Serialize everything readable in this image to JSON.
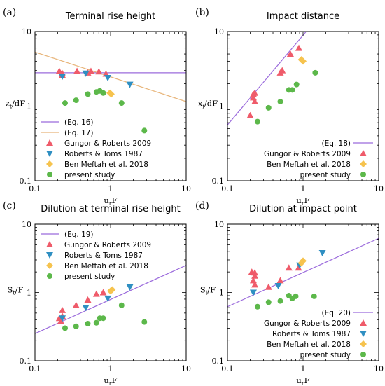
{
  "colors": {
    "eq_purple": "#9b6bdc",
    "eq_orange": "#e8b57a",
    "gungor": "#ef5b6a",
    "roberts": "#2f8fc2",
    "benmeftah": "#f6c34e",
    "present": "#5cb84a"
  },
  "chart_data": [
    {
      "panel": "(a)",
      "title": "Terminal rise height",
      "type": "scatter",
      "xlabel": "u_rF",
      "ylabel": "z_t/dF",
      "xscale": "log",
      "yscale": "log",
      "xlim": [
        0.1,
        10
      ],
      "ylim": [
        0.1,
        10
      ],
      "x_ticks": [
        "0.1",
        "1",
        "10"
      ],
      "y_ticks": [
        "0.1",
        "1",
        "10"
      ],
      "grid": false,
      "legend": {
        "position": "bottom-left"
      },
      "lines": [
        {
          "name": "(Eq. 16)",
          "color_key": "eq_purple",
          "points": [
            [
              0.1,
              2.8
            ],
            [
              10,
              2.8
            ]
          ]
        },
        {
          "name": "(Eq. 17)",
          "color_key": "eq_orange",
          "points": [
            [
              0.1,
              5.3
            ],
            [
              10,
              1.15
            ]
          ]
        }
      ],
      "series": [
        {
          "name": "Gungor & Roberts 2009",
          "marker": "triangle-up",
          "color_key": "gungor",
          "points": [
            [
              0.21,
              2.95
            ],
            [
              0.23,
              2.6
            ],
            [
              0.23,
              2.75
            ],
            [
              0.36,
              2.95
            ],
            [
              0.5,
              2.8
            ],
            [
              0.55,
              2.95
            ],
            [
              0.7,
              2.9
            ],
            [
              0.87,
              2.7
            ]
          ]
        },
        {
          "name": "Roberts & Toms 1987",
          "marker": "triangle-down",
          "color_key": "roberts",
          "points": [
            [
              0.23,
              2.5
            ],
            [
              0.47,
              2.75
            ],
            [
              0.92,
              2.4
            ],
            [
              1.8,
              1.95
            ]
          ]
        },
        {
          "name": "Ben Meftah et al. 2018",
          "marker": "diamond",
          "color_key": "benmeftah",
          "points": [
            [
              0.98,
              1.5
            ],
            [
              1.02,
              1.45
            ]
          ]
        },
        {
          "name": "present study",
          "marker": "circle",
          "color_key": "present",
          "points": [
            [
              0.25,
              1.1
            ],
            [
              0.35,
              1.2
            ],
            [
              0.5,
              1.45
            ],
            [
              0.65,
              1.55
            ],
            [
              0.72,
              1.6
            ],
            [
              0.8,
              1.5
            ],
            [
              1.4,
              1.1
            ],
            [
              2.8,
              0.47
            ]
          ]
        }
      ]
    },
    {
      "panel": "(b)",
      "title": "Impact distance",
      "type": "scatter",
      "xlabel": "u_rF",
      "ylabel": "x_i/dF",
      "xscale": "log",
      "yscale": "log",
      "xlim": [
        0.1,
        10
      ],
      "ylim": [
        0.1,
        10
      ],
      "x_ticks": [
        "0.1",
        "1",
        "10"
      ],
      "y_ticks": [
        "0.1",
        "1",
        "10"
      ],
      "grid": false,
      "legend": {
        "position": "bottom-right"
      },
      "lines": [
        {
          "name": "(Eq. 18)",
          "color_key": "eq_purple",
          "points": [
            [
              0.1,
              0.56
            ],
            [
              1.1,
              10
            ]
          ]
        }
      ],
      "series": [
        {
          "name": "Gungor & Roberts 2009",
          "marker": "triangle-up",
          "color_key": "gungor",
          "points": [
            [
              0.2,
              0.75
            ],
            [
              0.22,
              1.3
            ],
            [
              0.22,
              1.45
            ],
            [
              0.23,
              1.5
            ],
            [
              0.23,
              1.15
            ],
            [
              0.5,
              2.8
            ],
            [
              0.53,
              3.0
            ],
            [
              0.68,
              5.0
            ],
            [
              0.88,
              6.0
            ]
          ]
        },
        {
          "name": "Ben Meftah et al. 2018",
          "marker": "diamond",
          "color_key": "benmeftah",
          "points": [
            [
              0.95,
              4.2
            ],
            [
              1.0,
              4.0
            ]
          ]
        },
        {
          "name": "present study",
          "marker": "circle",
          "color_key": "present",
          "points": [
            [
              0.25,
              0.62
            ],
            [
              0.35,
              0.95
            ],
            [
              0.5,
              1.15
            ],
            [
              0.65,
              1.65
            ],
            [
              0.72,
              1.65
            ],
            [
              0.82,
              1.95
            ],
            [
              1.45,
              2.8
            ]
          ]
        }
      ]
    },
    {
      "panel": "(c)",
      "title": "Dilution at terminal rise height",
      "type": "scatter",
      "xlabel": "u_rF",
      "ylabel": "S_t/F",
      "xscale": "log",
      "yscale": "log",
      "xlim": [
        0.1,
        10
      ],
      "ylim": [
        0.1,
        10
      ],
      "x_ticks": [
        "0.1",
        "1",
        "10"
      ],
      "y_ticks": [
        "0.1",
        "1",
        "10"
      ],
      "grid": false,
      "legend": {
        "position": "top-left"
      },
      "lines": [
        {
          "name": "(Eq. 19)",
          "color_key": "eq_purple",
          "points": [
            [
              0.1,
              0.25
            ],
            [
              10,
              2.5
            ]
          ]
        }
      ],
      "series": [
        {
          "name": "Gungor & Roberts 2009",
          "marker": "triangle-up",
          "color_key": "gungor",
          "points": [
            [
              0.21,
              0.42
            ],
            [
              0.22,
              0.38
            ],
            [
              0.23,
              0.45
            ],
            [
              0.23,
              0.55
            ],
            [
              0.35,
              0.65
            ],
            [
              0.5,
              0.78
            ],
            [
              0.65,
              0.95
            ],
            [
              0.8,
              1.0
            ]
          ]
        },
        {
          "name": "Roberts & Toms 1987",
          "marker": "triangle-down",
          "color_key": "roberts",
          "points": [
            [
              0.23,
              0.42
            ],
            [
              0.47,
              0.6
            ],
            [
              0.92,
              0.82
            ],
            [
              1.8,
              1.2
            ]
          ]
        },
        {
          "name": "Ben Meftah et al. 2018",
          "marker": "diamond",
          "color_key": "benmeftah",
          "points": [
            [
              1.0,
              1.05
            ],
            [
              1.05,
              1.1
            ]
          ]
        },
        {
          "name": "present study",
          "marker": "circle",
          "color_key": "present",
          "points": [
            [
              0.25,
              0.3
            ],
            [
              0.35,
              0.32
            ],
            [
              0.5,
              0.35
            ],
            [
              0.65,
              0.36
            ],
            [
              0.72,
              0.42
            ],
            [
              0.8,
              0.42
            ],
            [
              1.4,
              0.65
            ],
            [
              2.8,
              0.37
            ]
          ]
        }
      ]
    },
    {
      "panel": "(d)",
      "title": "Dilution at impact point",
      "type": "scatter",
      "xlabel": "u_rF",
      "ylabel": "S_i/F",
      "xscale": "log",
      "yscale": "log",
      "xlim": [
        0.1,
        10
      ],
      "ylim": [
        0.1,
        10
      ],
      "x_ticks": [
        "0.1",
        "1",
        "10"
      ],
      "y_ticks": [
        "0.1",
        "1",
        "10"
      ],
      "grid": false,
      "legend": {
        "position": "bottom-right"
      },
      "lines": [
        {
          "name": "(Eq. 20)",
          "color_key": "eq_purple",
          "points": [
            [
              0.1,
              0.62
            ],
            [
              10,
              6.2
            ]
          ]
        }
      ],
      "series": [
        {
          "name": "Gungor & Roberts 2009",
          "marker": "triangle-up",
          "color_key": "gungor",
          "points": [
            [
              0.21,
              2.0
            ],
            [
              0.22,
              1.5
            ],
            [
              0.23,
              1.95
            ],
            [
              0.23,
              1.75
            ],
            [
              0.23,
              1.3
            ],
            [
              0.35,
              1.2
            ],
            [
              0.5,
              1.5
            ],
            [
              0.65,
              2.3
            ],
            [
              0.87,
              2.3
            ]
          ]
        },
        {
          "name": "Roberts & Toms 1987",
          "marker": "triangle-down",
          "color_key": "roberts",
          "points": [
            [
              0.22,
              1.0
            ],
            [
              0.47,
              1.25
            ],
            [
              0.9,
              2.5
            ],
            [
              1.8,
              3.8
            ]
          ]
        },
        {
          "name": "Ben Meftah et al. 2018",
          "marker": "diamond",
          "color_key": "benmeftah",
          "points": [
            [
              0.95,
              2.7
            ],
            [
              1.0,
              2.9
            ]
          ]
        },
        {
          "name": "present study",
          "marker": "circle",
          "color_key": "present",
          "points": [
            [
              0.25,
              0.62
            ],
            [
              0.35,
              0.72
            ],
            [
              0.5,
              0.75
            ],
            [
              0.65,
              0.9
            ],
            [
              0.72,
              0.82
            ],
            [
              0.8,
              0.88
            ],
            [
              1.4,
              0.88
            ]
          ]
        }
      ]
    }
  ]
}
